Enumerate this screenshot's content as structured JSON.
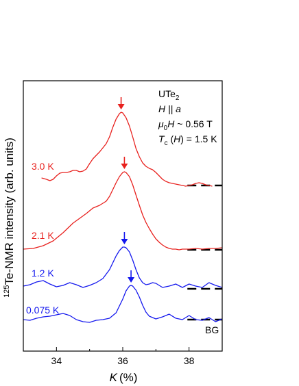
{
  "chart_data": {
    "type": "line",
    "xlabel": "K",
    "xlabel_unit": "(%)",
    "ylabel": "Te-NMR intensity (arb. units)",
    "ylabel_isotope": "125",
    "xlim": [
      33.0,
      39.0
    ],
    "x_ticks": [
      34,
      36,
      38
    ],
    "x_tick_labels": [
      "34",
      "36",
      "38"
    ],
    "grid": false,
    "annotation": {
      "compound": "UTe",
      "compound_sub": "2",
      "field_dir_prefix": "H",
      "field_dir_suffix": " || a",
      "field_prefix": "μ",
      "field_prefix_sub": "0",
      "field_symbol": "H",
      "field_value": " ~ 0.56 T",
      "tc_symbol": "T",
      "tc_sub": "c",
      "tc_mid": " (",
      "tc_paren_symbol": "H",
      "tc_value": ") = 1.5 K"
    },
    "bg_label": "BG",
    "series": [
      {
        "name": "3.0 K",
        "color": "#e8211e",
        "baseline": 0.0,
        "peak_x": 35.95,
        "x": [
          33.55,
          33.7,
          33.8,
          33.9,
          34.0,
          34.1,
          34.2,
          34.3,
          34.4,
          34.5,
          34.6,
          34.7,
          34.8,
          34.9,
          35.0,
          35.1,
          35.2,
          35.3,
          35.4,
          35.5,
          35.6,
          35.7,
          35.8,
          35.9,
          35.95,
          36.0,
          36.1,
          36.2,
          36.3,
          36.4,
          36.5,
          36.6,
          36.7,
          36.8,
          36.9,
          37.0,
          37.1,
          37.2,
          37.3,
          37.4,
          37.5,
          37.6,
          37.7,
          37.8,
          37.9,
          38.0,
          38.1,
          38.2,
          38.3,
          38.4,
          38.5,
          38.6,
          38.7
        ],
        "y": [
          0.12,
          0.1,
          0.08,
          0.1,
          0.15,
          0.19,
          0.2,
          0.2,
          0.21,
          0.23,
          0.23,
          0.21,
          0.22,
          0.25,
          0.33,
          0.4,
          0.45,
          0.5,
          0.56,
          0.62,
          0.72,
          0.86,
          0.98,
          1.06,
          1.08,
          1.07,
          1.0,
          0.88,
          0.72,
          0.55,
          0.43,
          0.34,
          0.29,
          0.26,
          0.24,
          0.2,
          0.15,
          0.1,
          0.07,
          0.05,
          0.04,
          0.03,
          0.02,
          0.01,
          0.0,
          0.01,
          0.02,
          0.04,
          0.05,
          0.04,
          0.02,
          0.01,
          0.0
        ]
      },
      {
        "name": "2.1 K",
        "color": "#e8211e",
        "baseline": 0.0,
        "peak_x": 36.05,
        "x": [
          33.0,
          33.3,
          33.6,
          33.9,
          34.2,
          34.5,
          34.7,
          34.9,
          35.1,
          35.3,
          35.5,
          35.6,
          35.7,
          35.8,
          35.9,
          36.0,
          36.05,
          36.1,
          36.2,
          36.3,
          36.4,
          36.5,
          36.6,
          36.7,
          36.8,
          36.9,
          37.0,
          37.1,
          37.2,
          37.3,
          37.4,
          37.5,
          37.6,
          37.7,
          37.8,
          37.9,
          38.0,
          38.2,
          38.4,
          38.6,
          38.8,
          39.0
        ],
        "y": [
          0.0,
          0.01,
          0.05,
          0.12,
          0.24,
          0.38,
          0.45,
          0.52,
          0.6,
          0.64,
          0.7,
          0.77,
          0.87,
          0.97,
          1.06,
          1.12,
          1.13,
          1.12,
          1.06,
          0.94,
          0.79,
          0.64,
          0.5,
          0.39,
          0.3,
          0.22,
          0.15,
          0.1,
          0.06,
          0.03,
          0.01,
          0.0,
          0.0,
          -0.01,
          0.0,
          0.0,
          0.0,
          0.01,
          0.0,
          0.01,
          0.01,
          0.02
        ]
      },
      {
        "name": "1.2 K",
        "color": "#1418ee",
        "baseline": 0.0,
        "peak_x": 36.05,
        "x": [
          33.0,
          33.2,
          33.4,
          33.6,
          33.8,
          34.0,
          34.2,
          34.4,
          34.6,
          34.8,
          35.0,
          35.2,
          35.4,
          35.6,
          35.8,
          35.9,
          36.0,
          36.05,
          36.1,
          36.2,
          36.3,
          36.4,
          36.5,
          36.6,
          36.7,
          36.8,
          36.9,
          37.0,
          37.2,
          37.4,
          37.6,
          37.8,
          38.0,
          38.2,
          38.4,
          38.6,
          38.8,
          39.0
        ],
        "y": [
          0.02,
          0.04,
          0.08,
          0.1,
          0.05,
          0.01,
          0.03,
          0.07,
          0.04,
          0.0,
          0.03,
          0.07,
          0.13,
          0.26,
          0.46,
          0.54,
          0.59,
          0.59,
          0.58,
          0.52,
          0.4,
          0.26,
          0.14,
          0.07,
          0.04,
          0.05,
          0.07,
          0.06,
          0.0,
          0.02,
          0.05,
          0.0,
          0.05,
          0.02,
          0.0,
          0.07,
          0.03,
          0.0
        ]
      },
      {
        "name": "0.075 K",
        "color": "#1418ee",
        "baseline": 0.0,
        "peak_x": 36.25,
        "x": [
          33.0,
          33.2,
          33.4,
          33.6,
          33.8,
          34.0,
          34.2,
          34.4,
          34.6,
          34.8,
          35.0,
          35.2,
          35.4,
          35.6,
          35.8,
          36.0,
          36.1,
          36.2,
          36.25,
          36.3,
          36.4,
          36.5,
          36.6,
          36.7,
          36.8,
          37.0,
          37.2,
          37.4,
          37.6,
          37.8,
          38.0,
          38.2,
          38.4,
          38.6,
          38.8,
          39.0
        ],
        "y": [
          0.03,
          0.02,
          0.05,
          0.07,
          0.08,
          0.1,
          0.12,
          0.09,
          0.03,
          0.0,
          -0.01,
          0.02,
          0.03,
          0.05,
          0.13,
          0.33,
          0.45,
          0.52,
          0.53,
          0.52,
          0.46,
          0.36,
          0.24,
          0.14,
          0.08,
          0.04,
          0.07,
          0.11,
          0.05,
          0.03,
          0.09,
          0.03,
          0.02,
          0.06,
          0.0,
          0.04
        ]
      }
    ]
  }
}
